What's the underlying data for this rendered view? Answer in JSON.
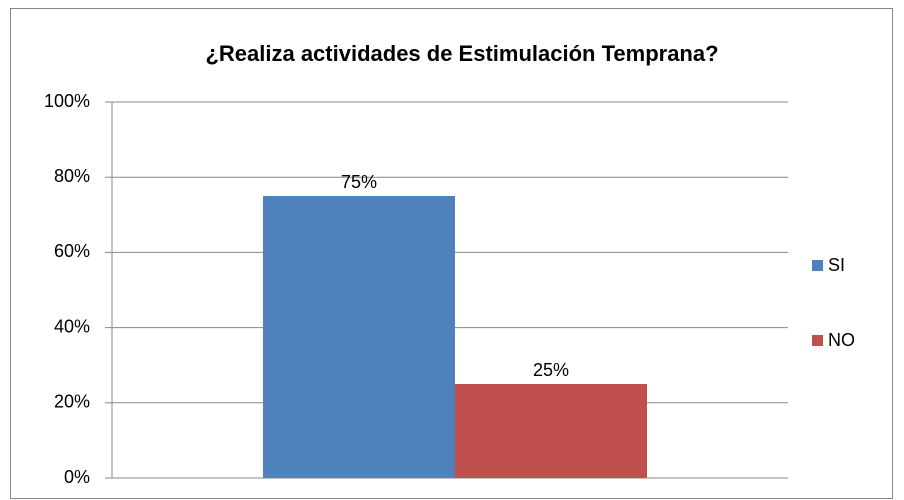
{
  "chart_data": {
    "type": "bar",
    "title": "¿Realiza actividades de Estimulación Temprana?",
    "categories": [
      null
    ],
    "series": [
      {
        "name": "SI",
        "color": "#4f81bd",
        "values": [
          75
        ],
        "value_labels": [
          "75%"
        ]
      },
      {
        "name": "NO",
        "color": "#c0504d",
        "values": [
          25
        ],
        "value_labels": [
          "25%"
        ]
      }
    ],
    "ylim": [
      0,
      100
    ],
    "yticks": [
      {
        "value": 0,
        "label": "0%"
      },
      {
        "value": 20,
        "label": "20%"
      },
      {
        "value": 40,
        "label": "40%"
      },
      {
        "value": 60,
        "label": "60%"
      },
      {
        "value": 80,
        "label": "80%"
      },
      {
        "value": 100,
        "label": "100%"
      }
    ],
    "grid": true,
    "legend": "right"
  }
}
